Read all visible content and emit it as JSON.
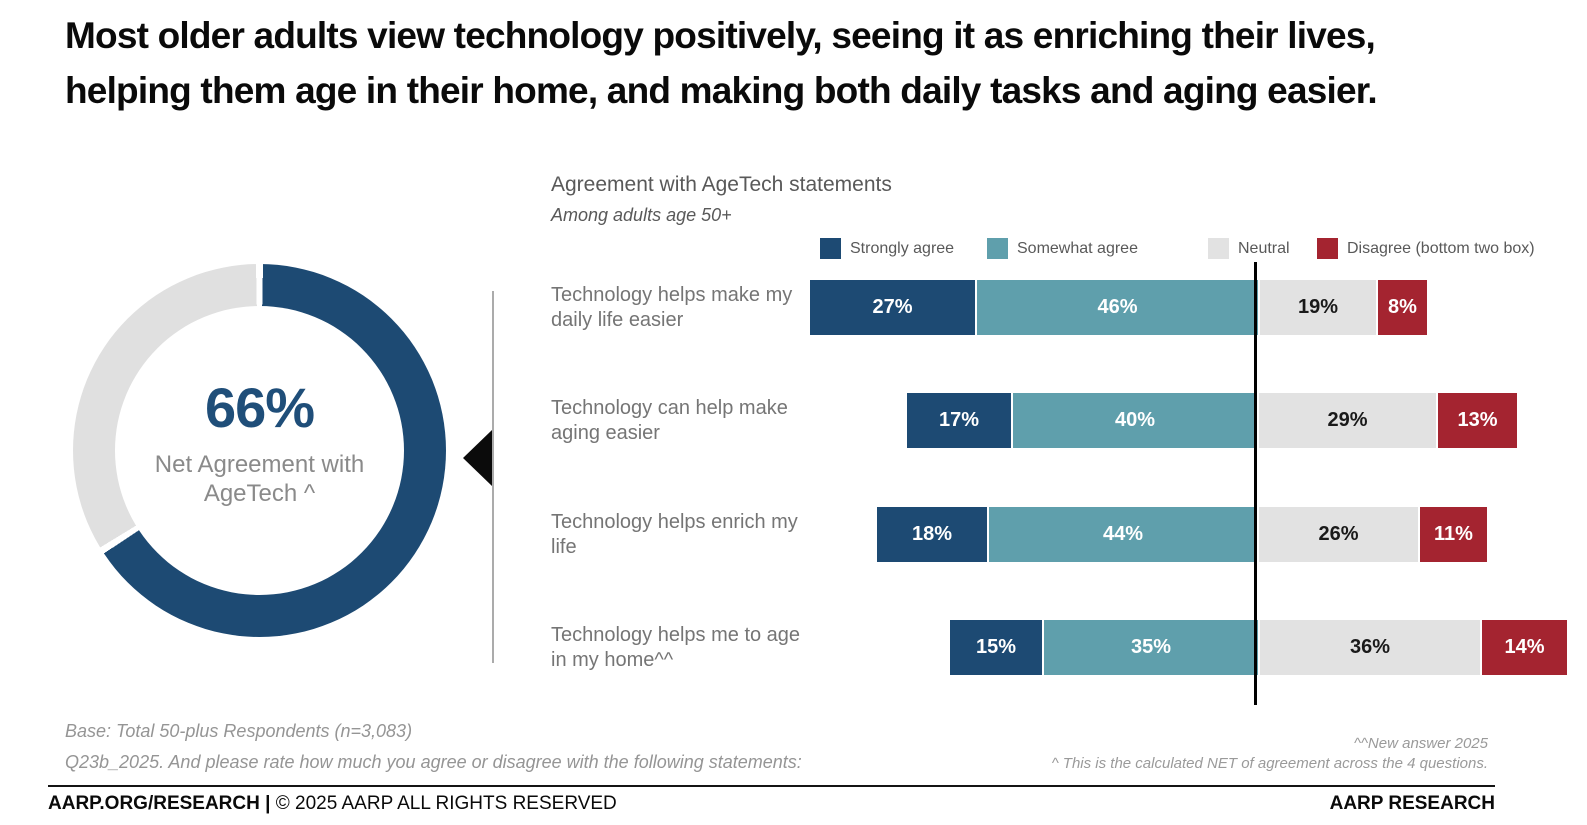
{
  "page": {
    "title": "Most older adults view technology positively, seeing it as enriching their lives, helping them age in their home, and making both daily tasks and aging easier."
  },
  "donut": {
    "percent": 66,
    "value_label": "66%",
    "center_label": "Net Agreement with AgeTech ^",
    "fill_color": "#1D4A73",
    "rest_color": "#E0E0E0",
    "value_color": "#1F4E79"
  },
  "chart_data": {
    "type": "bar",
    "variant": "horizontal-stacked",
    "title": "Agreement with AgeTech statements",
    "subtitle": "Among adults age 50+",
    "value_suffix": "%",
    "categories": [
      "Technology helps make my daily life easier",
      "Technology can help make aging easier",
      "Technology helps enrich my life",
      "Technology helps me to age in my home^^"
    ],
    "series": [
      {
        "name": "Strongly agree",
        "color": "#1D4A73",
        "label_color": "#ffffff",
        "values": [
          27,
          17,
          18,
          15
        ]
      },
      {
        "name": "Somewhat agree",
        "color": "#5F9FAC",
        "label_color": "#ffffff",
        "values": [
          46,
          40,
          44,
          35
        ]
      },
      {
        "name": "Neutral",
        "color": "#E2E2E2",
        "label_color": "#1a1a1a",
        "values": [
          19,
          29,
          26,
          36
        ]
      },
      {
        "name": "Disagree (bottom two box)",
        "color": "#A42430",
        "label_color": "#ffffff",
        "values": [
          8,
          13,
          11,
          14
        ]
      }
    ],
    "alignment": "bars aligned on the boundary between agreement and neutral segments (vertical reference line)"
  },
  "footnotes": {
    "base": "Base: Total 50-plus Respondents (n=3,083)",
    "question": "Q23b_2025. And please rate how much you agree or disagree with the following statements:",
    "new_answer": "^^New answer 2025",
    "net_note": "^ This is the calculated NET of agreement across the 4 questions."
  },
  "footer": {
    "left_bold": "AARP.ORG/RESEARCH |",
    "left_regular": " © 2025 AARP ALL RIGHTS RESERVED",
    "right": "AARP RESEARCH"
  }
}
